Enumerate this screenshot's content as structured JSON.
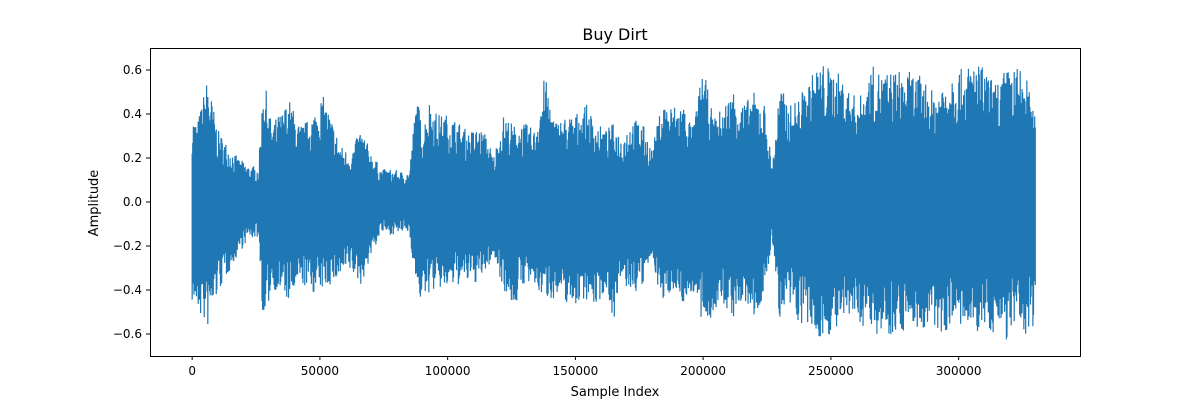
{
  "chart_data": {
    "type": "line",
    "title": "Buy Dirt",
    "xlabel": "Sample Index",
    "ylabel": "Amplitude",
    "xlim": [
      -16500,
      347500
    ],
    "ylim": [
      -0.7,
      0.7
    ],
    "x_ticks": [
      0,
      50000,
      100000,
      150000,
      200000,
      250000,
      300000
    ],
    "x_tick_labels": [
      "0",
      "50000",
      "100000",
      "150000",
      "200000",
      "250000",
      "300000"
    ],
    "y_ticks": [
      -0.6,
      -0.4,
      -0.2,
      0.0,
      0.2,
      0.4,
      0.6
    ],
    "y_tick_labels": [
      "−0.6",
      "−0.4",
      "−0.2",
      "0.0",
      "0.2",
      "0.4",
      "0.6"
    ],
    "grid": false,
    "series": [
      {
        "color": "#1f77b4",
        "sample_count": 331000,
        "envelope": {
          "x": [
            0,
            2000,
            6000,
            10000,
            14000,
            18000,
            22000,
            26000,
            28000,
            31000,
            35000,
            38000,
            42000,
            45000,
            48000,
            51000,
            54000,
            58000,
            62000,
            66000,
            70000,
            74000,
            78000,
            82000,
            85000,
            88000,
            90000,
            93000,
            96000,
            100000,
            104000,
            108000,
            112000,
            115000,
            118000,
            122000,
            126000,
            130000,
            134000,
            138000,
            142000,
            146000,
            150000,
            154000,
            158000,
            162000,
            165000,
            168000,
            172000,
            176000,
            180000,
            184000,
            188000,
            192000,
            196000,
            200000,
            204000,
            208000,
            212000,
            216000,
            220000,
            224000,
            227000,
            230000,
            234000,
            238000,
            242000,
            246000,
            250000,
            254000,
            258000,
            262000,
            266000,
            270000,
            274000,
            278000,
            282000,
            286000,
            290000,
            294000,
            298000,
            302000,
            306000,
            310000,
            314000,
            318000,
            322000,
            326000,
            330000
          ],
          "upper": [
            0.4,
            0.36,
            0.57,
            0.33,
            0.26,
            0.2,
            0.17,
            0.16,
            0.58,
            0.36,
            0.41,
            0.47,
            0.35,
            0.37,
            0.42,
            0.49,
            0.4,
            0.26,
            0.22,
            0.34,
            0.23,
            0.15,
            0.15,
            0.14,
            0.14,
            0.5,
            0.33,
            0.47,
            0.4,
            0.4,
            0.37,
            0.32,
            0.34,
            0.31,
            0.21,
            0.4,
            0.35,
            0.36,
            0.33,
            0.58,
            0.37,
            0.39,
            0.4,
            0.45,
            0.36,
            0.33,
            0.36,
            0.3,
            0.38,
            0.37,
            0.24,
            0.46,
            0.44,
            0.46,
            0.34,
            0.62,
            0.38,
            0.44,
            0.52,
            0.45,
            0.5,
            0.45,
            0.17,
            0.53,
            0.44,
            0.49,
            0.57,
            0.64,
            0.61,
            0.58,
            0.49,
            0.49,
            0.62,
            0.59,
            0.6,
            0.6,
            0.59,
            0.57,
            0.5,
            0.56,
            0.62,
            0.6,
            0.65,
            0.61,
            0.54,
            0.6,
            0.62,
            0.6,
            0.38
          ],
          "lower": [
            -0.46,
            -0.5,
            -0.58,
            -0.42,
            -0.33,
            -0.24,
            -0.17,
            -0.16,
            -0.6,
            -0.39,
            -0.42,
            -0.46,
            -0.38,
            -0.39,
            -0.42,
            -0.4,
            -0.38,
            -0.35,
            -0.32,
            -0.38,
            -0.25,
            -0.14,
            -0.15,
            -0.14,
            -0.14,
            -0.42,
            -0.46,
            -0.41,
            -0.4,
            -0.4,
            -0.38,
            -0.37,
            -0.37,
            -0.32,
            -0.25,
            -0.4,
            -0.49,
            -0.37,
            -0.4,
            -0.44,
            -0.44,
            -0.46,
            -0.47,
            -0.44,
            -0.48,
            -0.4,
            -0.54,
            -0.37,
            -0.42,
            -0.4,
            -0.25,
            -0.48,
            -0.39,
            -0.47,
            -0.41,
            -0.59,
            -0.51,
            -0.48,
            -0.53,
            -0.46,
            -0.53,
            -0.44,
            -0.17,
            -0.54,
            -0.5,
            -0.56,
            -0.59,
            -0.63,
            -0.6,
            -0.58,
            -0.53,
            -0.56,
            -0.59,
            -0.61,
            -0.6,
            -0.59,
            -0.56,
            -0.6,
            -0.58,
            -0.61,
            -0.53,
            -0.59,
            -0.61,
            -0.58,
            -0.6,
            -0.64,
            -0.58,
            -0.62,
            -0.55
          ]
        }
      }
    ]
  }
}
